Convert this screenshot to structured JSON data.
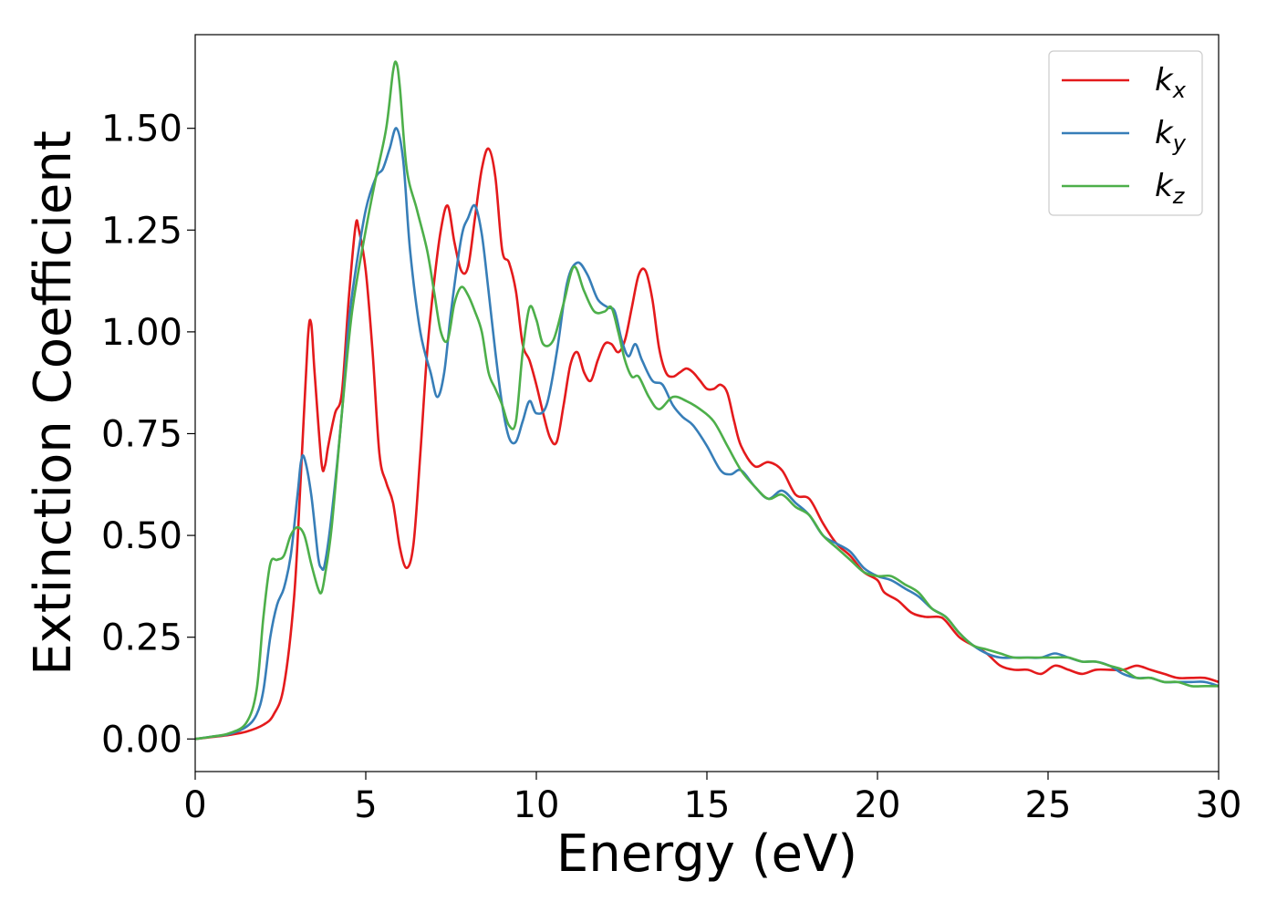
{
  "chart_data": {
    "type": "line",
    "xlabel": "Energy (eV)",
    "ylabel": "Extinction Coefficient",
    "xlim": [
      0,
      30
    ],
    "ylim": [
      -0.08,
      1.73
    ],
    "xticks": [
      0,
      5,
      10,
      15,
      20,
      25,
      30
    ],
    "xtick_labels": [
      "0",
      "5",
      "10",
      "15",
      "20",
      "25",
      "30"
    ],
    "yticks": [
      0.0,
      0.25,
      0.5,
      0.75,
      1.0,
      1.25,
      1.5
    ],
    "ytick_labels": [
      "0.00",
      "0.25",
      "0.50",
      "0.75",
      "1.00",
      "1.25",
      "1.50"
    ],
    "grid": false,
    "legend_position": "top-right",
    "series": [
      {
        "name": "k",
        "subscript": "x",
        "color": "#e41a1c",
        "points": [
          [
            0,
            0
          ],
          [
            0.5,
            0.005
          ],
          [
            1,
            0.01
          ],
          [
            1.5,
            0.018
          ],
          [
            2,
            0.035
          ],
          [
            2.3,
            0.06
          ],
          [
            2.6,
            0.13
          ],
          [
            2.9,
            0.35
          ],
          [
            3.1,
            0.65
          ],
          [
            3.3,
            0.98
          ],
          [
            3.4,
            1.02
          ],
          [
            3.5,
            0.9
          ],
          [
            3.7,
            0.68
          ],
          [
            3.8,
            0.67
          ],
          [
            3.9,
            0.72
          ],
          [
            4.1,
            0.8
          ],
          [
            4.3,
            0.85
          ],
          [
            4.5,
            1.08
          ],
          [
            4.7,
            1.26
          ],
          [
            4.8,
            1.25
          ],
          [
            5,
            1.15
          ],
          [
            5.2,
            0.95
          ],
          [
            5.4,
            0.7
          ],
          [
            5.6,
            0.63
          ],
          [
            5.8,
            0.58
          ],
          [
            6,
            0.47
          ],
          [
            6.2,
            0.42
          ],
          [
            6.4,
            0.48
          ],
          [
            6.6,
            0.7
          ],
          [
            6.8,
            0.95
          ],
          [
            7,
            1.12
          ],
          [
            7.2,
            1.25
          ],
          [
            7.4,
            1.31
          ],
          [
            7.6,
            1.22
          ],
          [
            7.8,
            1.15
          ],
          [
            8,
            1.16
          ],
          [
            8.2,
            1.28
          ],
          [
            8.4,
            1.4
          ],
          [
            8.6,
            1.45
          ],
          [
            8.8,
            1.38
          ],
          [
            9,
            1.2
          ],
          [
            9.2,
            1.17
          ],
          [
            9.4,
            1.1
          ],
          [
            9.6,
            0.97
          ],
          [
            9.8,
            0.93
          ],
          [
            10,
            0.87
          ],
          [
            10.2,
            0.8
          ],
          [
            10.4,
            0.74
          ],
          [
            10.6,
            0.73
          ],
          [
            10.8,
            0.82
          ],
          [
            11,
            0.92
          ],
          [
            11.2,
            0.95
          ],
          [
            11.4,
            0.9
          ],
          [
            11.6,
            0.88
          ],
          [
            11.8,
            0.93
          ],
          [
            12,
            0.97
          ],
          [
            12.2,
            0.97
          ],
          [
            12.4,
            0.95
          ],
          [
            12.6,
            0.98
          ],
          [
            12.8,
            1.06
          ],
          [
            13,
            1.14
          ],
          [
            13.2,
            1.15
          ],
          [
            13.4,
            1.08
          ],
          [
            13.6,
            0.96
          ],
          [
            13.8,
            0.9
          ],
          [
            14,
            0.89
          ],
          [
            14.2,
            0.9
          ],
          [
            14.4,
            0.91
          ],
          [
            14.6,
            0.9
          ],
          [
            14.8,
            0.88
          ],
          [
            15,
            0.86
          ],
          [
            15.2,
            0.86
          ],
          [
            15.4,
            0.87
          ],
          [
            15.6,
            0.85
          ],
          [
            15.8,
            0.78
          ],
          [
            16,
            0.72
          ],
          [
            16.4,
            0.67
          ],
          [
            16.8,
            0.68
          ],
          [
            17.2,
            0.66
          ],
          [
            17.6,
            0.6
          ],
          [
            18,
            0.59
          ],
          [
            18.4,
            0.53
          ],
          [
            18.8,
            0.48
          ],
          [
            19.2,
            0.45
          ],
          [
            19.6,
            0.41
          ],
          [
            20,
            0.39
          ],
          [
            20.2,
            0.36
          ],
          [
            20.6,
            0.34
          ],
          [
            21,
            0.31
          ],
          [
            21.4,
            0.3
          ],
          [
            21.8,
            0.3
          ],
          [
            22,
            0.29
          ],
          [
            22.4,
            0.25
          ],
          [
            22.8,
            0.23
          ],
          [
            23.2,
            0.21
          ],
          [
            23.6,
            0.18
          ],
          [
            24,
            0.17
          ],
          [
            24.4,
            0.17
          ],
          [
            24.8,
            0.16
          ],
          [
            25.2,
            0.18
          ],
          [
            25.6,
            0.17
          ],
          [
            26,
            0.16
          ],
          [
            26.4,
            0.17
          ],
          [
            26.8,
            0.17
          ],
          [
            27.2,
            0.17
          ],
          [
            27.6,
            0.18
          ],
          [
            28,
            0.17
          ],
          [
            28.4,
            0.16
          ],
          [
            28.8,
            0.15
          ],
          [
            29.2,
            0.15
          ],
          [
            29.6,
            0.15
          ],
          [
            30,
            0.14
          ]
        ]
      },
      {
        "name": "k",
        "subscript": "y",
        "color": "#377eb8",
        "points": [
          [
            0,
            0
          ],
          [
            0.5,
            0.006
          ],
          [
            1,
            0.012
          ],
          [
            1.5,
            0.03
          ],
          [
            1.8,
            0.06
          ],
          [
            2,
            0.12
          ],
          [
            2.2,
            0.25
          ],
          [
            2.4,
            0.33
          ],
          [
            2.6,
            0.37
          ],
          [
            2.8,
            0.45
          ],
          [
            3,
            0.6
          ],
          [
            3.1,
            0.68
          ],
          [
            3.2,
            0.69
          ],
          [
            3.4,
            0.6
          ],
          [
            3.6,
            0.45
          ],
          [
            3.7,
            0.42
          ],
          [
            3.8,
            0.43
          ],
          [
            4,
            0.55
          ],
          [
            4.3,
            0.8
          ],
          [
            4.5,
            1.02
          ],
          [
            4.7,
            1.15
          ],
          [
            5,
            1.3
          ],
          [
            5.3,
            1.38
          ],
          [
            5.5,
            1.4
          ],
          [
            5.7,
            1.45
          ],
          [
            5.9,
            1.5
          ],
          [
            6.1,
            1.42
          ],
          [
            6.3,
            1.2
          ],
          [
            6.6,
            1.0
          ],
          [
            6.9,
            0.9
          ],
          [
            7.1,
            0.84
          ],
          [
            7.3,
            0.9
          ],
          [
            7.5,
            1.05
          ],
          [
            7.8,
            1.23
          ],
          [
            8,
            1.28
          ],
          [
            8.2,
            1.31
          ],
          [
            8.4,
            1.24
          ],
          [
            8.6,
            1.1
          ],
          [
            8.8,
            0.95
          ],
          [
            9,
            0.82
          ],
          [
            9.2,
            0.74
          ],
          [
            9.4,
            0.73
          ],
          [
            9.6,
            0.78
          ],
          [
            9.8,
            0.83
          ],
          [
            10,
            0.8
          ],
          [
            10.3,
            0.82
          ],
          [
            10.6,
            0.95
          ],
          [
            10.9,
            1.12
          ],
          [
            11.2,
            1.17
          ],
          [
            11.5,
            1.14
          ],
          [
            11.8,
            1.08
          ],
          [
            12.1,
            1.06
          ],
          [
            12.3,
            1.05
          ],
          [
            12.5,
            0.98
          ],
          [
            12.7,
            0.94
          ],
          [
            12.9,
            0.97
          ],
          [
            13.1,
            0.93
          ],
          [
            13.4,
            0.88
          ],
          [
            13.7,
            0.87
          ],
          [
            14,
            0.82
          ],
          [
            14.3,
            0.79
          ],
          [
            14.6,
            0.77
          ],
          [
            15,
            0.72
          ],
          [
            15.4,
            0.66
          ],
          [
            15.7,
            0.65
          ],
          [
            16,
            0.66
          ],
          [
            16.4,
            0.62
          ],
          [
            16.8,
            0.59
          ],
          [
            17.2,
            0.61
          ],
          [
            17.6,
            0.58
          ],
          [
            18,
            0.55
          ],
          [
            18.4,
            0.5
          ],
          [
            18.8,
            0.48
          ],
          [
            19.2,
            0.46
          ],
          [
            19.6,
            0.42
          ],
          [
            20,
            0.4
          ],
          [
            20.4,
            0.39
          ],
          [
            20.8,
            0.37
          ],
          [
            21.2,
            0.35
          ],
          [
            21.6,
            0.32
          ],
          [
            22,
            0.3
          ],
          [
            22.4,
            0.26
          ],
          [
            22.8,
            0.23
          ],
          [
            23.2,
            0.21
          ],
          [
            23.6,
            0.2
          ],
          [
            24,
            0.2
          ],
          [
            24.4,
            0.2
          ],
          [
            24.8,
            0.2
          ],
          [
            25.2,
            0.21
          ],
          [
            25.6,
            0.2
          ],
          [
            26,
            0.19
          ],
          [
            26.4,
            0.19
          ],
          [
            26.8,
            0.18
          ],
          [
            27.2,
            0.16
          ],
          [
            27.6,
            0.15
          ],
          [
            28,
            0.15
          ],
          [
            28.4,
            0.14
          ],
          [
            28.8,
            0.14
          ],
          [
            29.2,
            0.14
          ],
          [
            29.6,
            0.14
          ],
          [
            30,
            0.13
          ]
        ]
      },
      {
        "name": "k",
        "subscript": "z",
        "color": "#4daf4a",
        "points": [
          [
            0,
            0
          ],
          [
            0.5,
            0.006
          ],
          [
            1,
            0.014
          ],
          [
            1.5,
            0.04
          ],
          [
            1.8,
            0.12
          ],
          [
            2,
            0.3
          ],
          [
            2.2,
            0.43
          ],
          [
            2.4,
            0.44
          ],
          [
            2.6,
            0.45
          ],
          [
            2.8,
            0.5
          ],
          [
            3,
            0.52
          ],
          [
            3.2,
            0.5
          ],
          [
            3.4,
            0.43
          ],
          [
            3.6,
            0.37
          ],
          [
            3.7,
            0.36
          ],
          [
            3.8,
            0.4
          ],
          [
            4,
            0.52
          ],
          [
            4.3,
            0.8
          ],
          [
            4.6,
            1.05
          ],
          [
            5,
            1.25
          ],
          [
            5.3,
            1.38
          ],
          [
            5.6,
            1.5
          ],
          [
            5.8,
            1.64
          ],
          [
            5.9,
            1.66
          ],
          [
            6,
            1.6
          ],
          [
            6.2,
            1.4
          ],
          [
            6.5,
            1.3
          ],
          [
            6.8,
            1.2
          ],
          [
            7,
            1.1
          ],
          [
            7.2,
            1.0
          ],
          [
            7.4,
            0.98
          ],
          [
            7.6,
            1.07
          ],
          [
            7.8,
            1.11
          ],
          [
            8,
            1.09
          ],
          [
            8.2,
            1.05
          ],
          [
            8.4,
            1.0
          ],
          [
            8.6,
            0.9
          ],
          [
            8.8,
            0.86
          ],
          [
            9,
            0.82
          ],
          [
            9.2,
            0.77
          ],
          [
            9.4,
            0.78
          ],
          [
            9.6,
            0.95
          ],
          [
            9.8,
            1.06
          ],
          [
            10,
            1.03
          ],
          [
            10.2,
            0.97
          ],
          [
            10.5,
            0.98
          ],
          [
            10.8,
            1.07
          ],
          [
            11.1,
            1.16
          ],
          [
            11.4,
            1.1
          ],
          [
            11.7,
            1.05
          ],
          [
            12,
            1.05
          ],
          [
            12.2,
            1.06
          ],
          [
            12.4,
            1.0
          ],
          [
            12.6,
            0.93
          ],
          [
            12.8,
            0.89
          ],
          [
            13,
            0.89
          ],
          [
            13.3,
            0.84
          ],
          [
            13.6,
            0.81
          ],
          [
            14,
            0.84
          ],
          [
            14.4,
            0.83
          ],
          [
            14.8,
            0.81
          ],
          [
            15.2,
            0.78
          ],
          [
            15.6,
            0.72
          ],
          [
            16,
            0.66
          ],
          [
            16.4,
            0.62
          ],
          [
            16.8,
            0.59
          ],
          [
            17.2,
            0.6
          ],
          [
            17.6,
            0.57
          ],
          [
            18,
            0.55
          ],
          [
            18.4,
            0.5
          ],
          [
            18.8,
            0.47
          ],
          [
            19.2,
            0.44
          ],
          [
            19.6,
            0.41
          ],
          [
            20,
            0.4
          ],
          [
            20.4,
            0.4
          ],
          [
            20.8,
            0.38
          ],
          [
            21.2,
            0.36
          ],
          [
            21.6,
            0.32
          ],
          [
            22,
            0.3
          ],
          [
            22.4,
            0.26
          ],
          [
            22.8,
            0.23
          ],
          [
            23.2,
            0.22
          ],
          [
            23.6,
            0.21
          ],
          [
            24,
            0.2
          ],
          [
            24.4,
            0.2
          ],
          [
            24.8,
            0.2
          ],
          [
            25.2,
            0.2
          ],
          [
            25.6,
            0.2
          ],
          [
            26,
            0.19
          ],
          [
            26.4,
            0.19
          ],
          [
            26.8,
            0.18
          ],
          [
            27.2,
            0.17
          ],
          [
            27.6,
            0.15
          ],
          [
            28,
            0.15
          ],
          [
            28.4,
            0.14
          ],
          [
            28.8,
            0.14
          ],
          [
            29.2,
            0.13
          ],
          [
            29.6,
            0.13
          ],
          [
            30,
            0.13
          ]
        ]
      }
    ]
  }
}
